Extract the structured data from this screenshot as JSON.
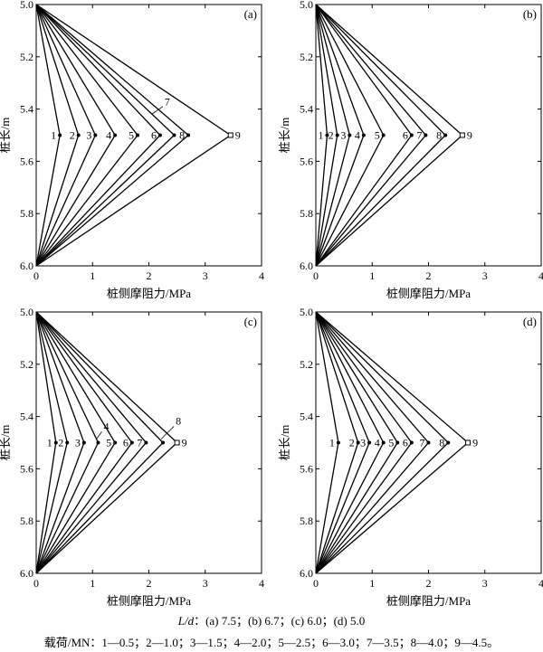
{
  "chart_data": [
    {
      "type": "line",
      "panel": "(a)",
      "xlabel": "桩侧摩阻力/MPa",
      "ylabel": "桩长/m",
      "xlim": [
        0,
        4
      ],
      "ylim": [
        5.0,
        6.0
      ],
      "y_inverted": true,
      "x_ticks": [
        "0",
        "1",
        "2",
        "3",
        "4"
      ],
      "y_ticks": [
        "5.0",
        "5.2",
        "5.4",
        "5.6",
        "5.8",
        "6.0"
      ],
      "series": [
        {
          "name": "1",
          "points": [
            [
              0,
              5.0
            ],
            [
              0.42,
              5.5
            ],
            [
              0,
              6.0
            ]
          ]
        },
        {
          "name": "2",
          "points": [
            [
              0,
              5.0
            ],
            [
              0.75,
              5.5
            ],
            [
              0,
              6.0
            ]
          ]
        },
        {
          "name": "3",
          "points": [
            [
              0,
              5.0
            ],
            [
              1.05,
              5.5
            ],
            [
              0,
              6.0
            ]
          ]
        },
        {
          "name": "4",
          "points": [
            [
              0,
              5.0
            ],
            [
              1.4,
              5.5
            ],
            [
              0,
              6.0
            ]
          ]
        },
        {
          "name": "5",
          "points": [
            [
              0,
              5.0
            ],
            [
              1.8,
              5.5
            ],
            [
              0,
              6.0
            ]
          ]
        },
        {
          "name": "6",
          "points": [
            [
              0,
              5.0
            ],
            [
              2.2,
              5.5
            ],
            [
              0,
              6.0
            ]
          ]
        },
        {
          "name": "7",
          "points": [
            [
              0,
              5.0
            ],
            [
              2.45,
              5.5
            ],
            [
              0,
              6.0
            ]
          ]
        },
        {
          "name": "8",
          "points": [
            [
              0,
              5.0
            ],
            [
              2.7,
              5.5
            ],
            [
              0,
              6.0
            ]
          ]
        },
        {
          "name": "9",
          "points": [
            [
              0,
              5.0
            ],
            [
              3.45,
              5.5
            ],
            [
              0,
              6.0
            ]
          ]
        }
      ]
    },
    {
      "type": "line",
      "panel": "(b)",
      "xlabel": "桩侧摩阻力/MPa",
      "ylabel": "桩长/m",
      "xlim": [
        0,
        4
      ],
      "ylim": [
        5.0,
        6.0
      ],
      "y_inverted": true,
      "x_ticks": [
        "0",
        "1",
        "2",
        "3",
        "4"
      ],
      "y_ticks": [
        "5.0",
        "5.2",
        "5.4",
        "5.6",
        "5.8",
        "6.0"
      ],
      "series": [
        {
          "name": "1",
          "points": [
            [
              0,
              5.0
            ],
            [
              0.2,
              5.5
            ],
            [
              0,
              6.0
            ]
          ]
        },
        {
          "name": "2",
          "points": [
            [
              0,
              5.0
            ],
            [
              0.38,
              5.5
            ],
            [
              0,
              6.0
            ]
          ]
        },
        {
          "name": "3",
          "points": [
            [
              0,
              5.0
            ],
            [
              0.6,
              5.5
            ],
            [
              0,
              6.0
            ]
          ]
        },
        {
          "name": "4",
          "points": [
            [
              0,
              5.0
            ],
            [
              0.85,
              5.5
            ],
            [
              0,
              6.0
            ]
          ]
        },
        {
          "name": "5",
          "points": [
            [
              0,
              5.0
            ],
            [
              1.2,
              5.5
            ],
            [
              0,
              6.0
            ]
          ]
        },
        {
          "name": "6",
          "points": [
            [
              0,
              5.0
            ],
            [
              1.7,
              5.5
            ],
            [
              0,
              6.0
            ]
          ]
        },
        {
          "name": "7",
          "points": [
            [
              0,
              5.0
            ],
            [
              1.95,
              5.5
            ],
            [
              0,
              6.0
            ]
          ]
        },
        {
          "name": "8",
          "points": [
            [
              0,
              5.0
            ],
            [
              2.3,
              5.5
            ],
            [
              0,
              6.0
            ]
          ]
        },
        {
          "name": "9",
          "points": [
            [
              0,
              5.0
            ],
            [
              2.6,
              5.5
            ],
            [
              0,
              6.0
            ]
          ]
        }
      ]
    },
    {
      "type": "line",
      "panel": "(c)",
      "xlabel": "桩侧摩阻力/MPa",
      "ylabel": "桩长/m",
      "xlim": [
        0,
        4
      ],
      "ylim": [
        5.0,
        6.0
      ],
      "y_inverted": true,
      "x_ticks": [
        "0",
        "1",
        "2",
        "3",
        "4"
      ],
      "y_ticks": [
        "5.0",
        "5.2",
        "5.4",
        "5.6",
        "5.8",
        "6.0"
      ],
      "series": [
        {
          "name": "1",
          "points": [
            [
              0,
              5.0
            ],
            [
              0.35,
              5.5
            ],
            [
              0,
              6.0
            ]
          ]
        },
        {
          "name": "2",
          "points": [
            [
              0,
              5.0
            ],
            [
              0.55,
              5.5
            ],
            [
              0,
              6.0
            ]
          ]
        },
        {
          "name": "3",
          "points": [
            [
              0,
              5.0
            ],
            [
              0.85,
              5.5
            ],
            [
              0,
              6.0
            ]
          ]
        },
        {
          "name": "4",
          "points": [
            [
              0,
              5.0
            ],
            [
              1.1,
              5.5
            ],
            [
              0,
              6.0
            ]
          ]
        },
        {
          "name": "5",
          "points": [
            [
              0,
              5.0
            ],
            [
              1.4,
              5.5
            ],
            [
              0,
              6.0
            ]
          ]
        },
        {
          "name": "6",
          "points": [
            [
              0,
              5.0
            ],
            [
              1.7,
              5.5
            ],
            [
              0,
              6.0
            ]
          ]
        },
        {
          "name": "7",
          "points": [
            [
              0,
              5.0
            ],
            [
              1.95,
              5.5
            ],
            [
              0,
              6.0
            ]
          ]
        },
        {
          "name": "8",
          "points": [
            [
              0,
              5.0
            ],
            [
              2.25,
              5.5
            ],
            [
              0,
              6.0
            ]
          ]
        },
        {
          "name": "9",
          "points": [
            [
              0,
              5.0
            ],
            [
              2.5,
              5.5
            ],
            [
              0,
              6.0
            ]
          ]
        }
      ]
    },
    {
      "type": "line",
      "panel": "(d)",
      "xlabel": "桩侧摩阻力/MPa",
      "ylabel": "桩长/m",
      "xlim": [
        0,
        4
      ],
      "ylim": [
        5.0,
        6.0
      ],
      "y_inverted": true,
      "x_ticks": [
        "0",
        "1",
        "2",
        "3",
        "4"
      ],
      "y_ticks": [
        "5.0",
        "5.2",
        "5.4",
        "5.6",
        "5.8",
        "6.0"
      ],
      "series": [
        {
          "name": "1",
          "points": [
            [
              0,
              5.0
            ],
            [
              0.4,
              5.5
            ],
            [
              0,
              6.0
            ]
          ]
        },
        {
          "name": "2",
          "points": [
            [
              0,
              5.0
            ],
            [
              0.75,
              5.5
            ],
            [
              0,
              6.0
            ]
          ]
        },
        {
          "name": "3",
          "points": [
            [
              0,
              5.0
            ],
            [
              0.95,
              5.5
            ],
            [
              0,
              6.0
            ]
          ]
        },
        {
          "name": "4",
          "points": [
            [
              0,
              5.0
            ],
            [
              1.2,
              5.5
            ],
            [
              0,
              6.0
            ]
          ]
        },
        {
          "name": "5",
          "points": [
            [
              0,
              5.0
            ],
            [
              1.45,
              5.5
            ],
            [
              0,
              6.0
            ]
          ]
        },
        {
          "name": "6",
          "points": [
            [
              0,
              5.0
            ],
            [
              1.7,
              5.5
            ],
            [
              0,
              6.0
            ]
          ]
        },
        {
          "name": "7",
          "points": [
            [
              0,
              5.0
            ],
            [
              2.0,
              5.5
            ],
            [
              0,
              6.0
            ]
          ]
        },
        {
          "name": "8",
          "points": [
            [
              0,
              5.0
            ],
            [
              2.35,
              5.5
            ],
            [
              0,
              6.0
            ]
          ]
        },
        {
          "name": "9",
          "points": [
            [
              0,
              5.0
            ],
            [
              2.7,
              5.5
            ],
            [
              0,
              6.0
            ]
          ]
        }
      ]
    }
  ],
  "caption": {
    "ld_var": "L/d",
    "ld_rest": "：(a) 7.5；(b) 6.7；(c) 6.0；(d) 5.0",
    "load": "载荷/MN：1—0.5；2—1.0；3—1.5；4—2.0；5—2.5；6—3.0；7—3.5；8—4.0；9—4.5。"
  },
  "colors": {
    "line": "#000000",
    "background": "#ffffff"
  }
}
